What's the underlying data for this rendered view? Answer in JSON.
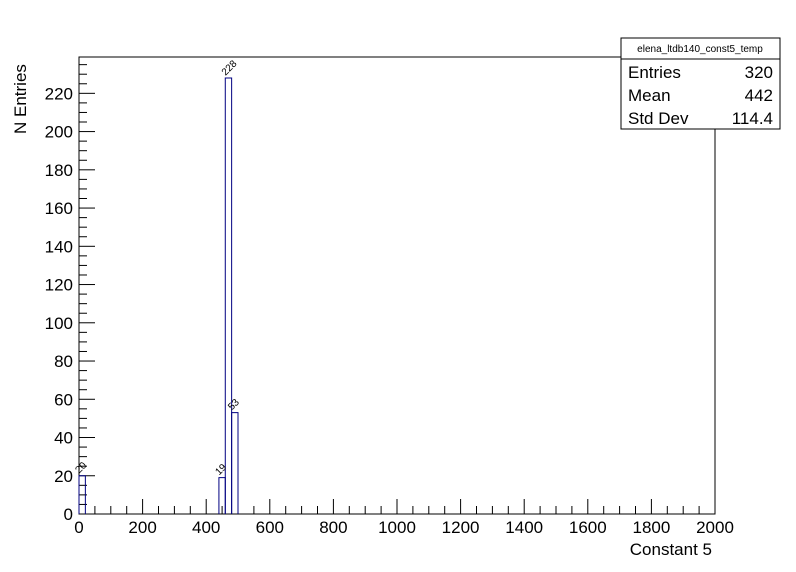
{
  "chart_data": {
    "type": "bar",
    "histogram_style": "step",
    "bin_width": 20,
    "bins": [
      {
        "x_low": 0,
        "x_high": 20,
        "value": 20
      },
      {
        "x_low": 440,
        "x_high": 460,
        "value": 19
      },
      {
        "x_low": 460,
        "x_high": 480,
        "value": 228
      },
      {
        "x_low": 480,
        "x_high": 500,
        "value": 53
      }
    ],
    "xlabel": "Constant 5",
    "ylabel": "N Entries",
    "xlim": [
      0,
      2000
    ],
    "ylim": [
      0,
      239
    ],
    "x_major_ticks": [
      0,
      200,
      400,
      600,
      800,
      1000,
      1200,
      1400,
      1600,
      1800,
      2000
    ],
    "y_major_ticks": [
      0,
      20,
      40,
      60,
      80,
      100,
      120,
      140,
      160,
      180,
      200,
      220
    ],
    "grid": false,
    "line_color": "#000080",
    "stats_box": {
      "title": "elena_ltdb140_const5_temp",
      "placement": "top-right",
      "rows": [
        {
          "label": "Entries",
          "value": "320"
        },
        {
          "label": "Mean",
          "value": "442"
        },
        {
          "label": "Std Dev",
          "value": "114.4"
        }
      ]
    }
  }
}
